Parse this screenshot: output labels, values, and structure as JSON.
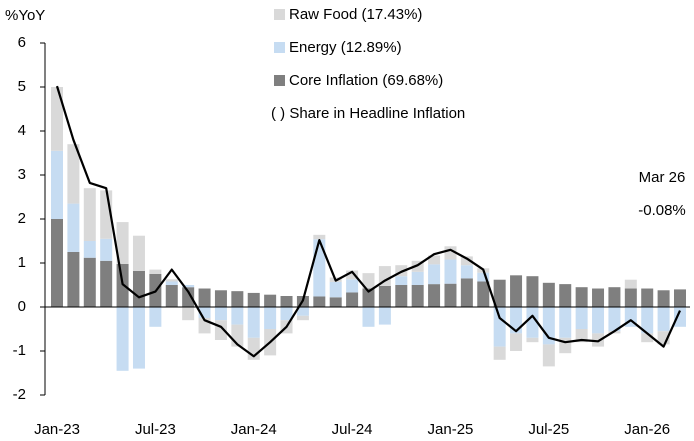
{
  "chart_data": {
    "type": "stacked_bar_line",
    "y_axis_label": "%YoY",
    "categories": [
      "Jan-23",
      null,
      null,
      null,
      null,
      null,
      "Jul-23",
      null,
      null,
      null,
      null,
      null,
      "Jan-24",
      null,
      null,
      null,
      null,
      null,
      "Jul-24",
      null,
      null,
      null,
      null,
      null,
      "Jan-25",
      null,
      null,
      null,
      null,
      null,
      "Jul-25",
      null,
      null,
      null,
      null,
      null,
      "Jan-26",
      null,
      null
    ],
    "series": [
      {
        "name": "Raw Food (17.43%)",
        "color": "#d9d9d9",
        "values": [
          1.45,
          1.35,
          1.2,
          1.1,
          0.95,
          0.8,
          0.1,
          0.05,
          -0.3,
          -0.35,
          -0.45,
          -0.5,
          -0.5,
          -0.6,
          -0.3,
          -0.1,
          0.1,
          0.1,
          0.2,
          0.35,
          0.45,
          0.25,
          0.25,
          0.2,
          0.3,
          0.2,
          0.1,
          -0.3,
          -0.4,
          -0.1,
          -0.5,
          -0.35,
          -0.3,
          -0.3,
          -0.05,
          0.2,
          -0.2,
          -0.3,
          0
        ]
      },
      {
        "name": "Energy (12.89%)",
        "color": "#c6dcf2",
        "values": [
          1.55,
          1.1,
          0.38,
          0.5,
          -1.45,
          -1.4,
          -0.45,
          0.08,
          0.05,
          -0.25,
          -0.3,
          -0.4,
          -0.7,
          -0.5,
          -0.3,
          -0.2,
          1.3,
          0.35,
          0.3,
          -0.45,
          -0.4,
          0.2,
          0.3,
          0.45,
          0.55,
          0.3,
          0.2,
          -0.9,
          -0.6,
          -0.7,
          -0.85,
          -0.7,
          -0.5,
          -0.6,
          -0.55,
          -0.45,
          -0.6,
          -0.55,
          -0.45
        ]
      },
      {
        "name": "Core Inflation (69.68%)",
        "color": "#7f7f7f",
        "values": [
          2.0,
          1.25,
          1.12,
          1.05,
          0.98,
          0.82,
          0.75,
          0.5,
          0.45,
          0.42,
          0.38,
          0.36,
          0.32,
          0.28,
          0.25,
          0.25,
          0.24,
          0.22,
          0.33,
          0.42,
          0.48,
          0.5,
          0.5,
          0.52,
          0.53,
          0.65,
          0.58,
          0.62,
          0.72,
          0.7,
          0.55,
          0.52,
          0.45,
          0.42,
          0.45,
          0.42,
          0.42,
          0.38,
          0.4
        ]
      }
    ],
    "stack_order": [
      2,
      1,
      0
    ],
    "line": {
      "color": "#000000",
      "values": [
        5.02,
        3.8,
        2.82,
        2.7,
        0.52,
        0.22,
        0.35,
        0.85,
        0.35,
        -0.3,
        -0.45,
        -0.85,
        -1.12,
        -0.8,
        -0.45,
        0.15,
        1.52,
        0.6,
        0.8,
        0.35,
        0.6,
        0.8,
        0.95,
        1.2,
        1.3,
        1.1,
        0.85,
        -0.25,
        -0.55,
        -0.2,
        -0.7,
        -0.8,
        -0.75,
        -0.78,
        -0.55,
        -0.3,
        -0.6,
        -0.9,
        -0.08
      ]
    },
    "legend_note": "( ) Share in Headline Inflation",
    "annotations": [
      "Mar 26",
      "-0.08%"
    ],
    "ylim": [
      -2,
      6
    ],
    "yticks": [
      -2,
      -1,
      0,
      1,
      2,
      3,
      4,
      5,
      6
    ]
  }
}
